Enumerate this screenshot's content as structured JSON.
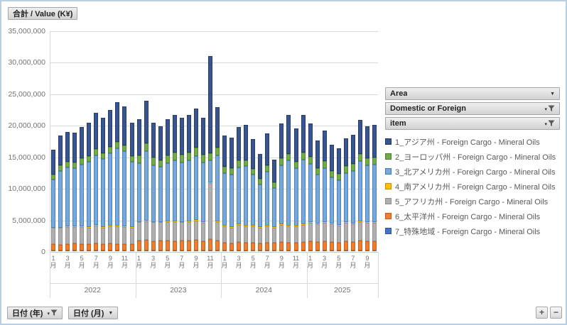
{
  "value_field_button": {
    "label": "合計 / Value (K¥)"
  },
  "legend_filter_buttons": [
    {
      "label": "Area",
      "icons": [
        "dropdown"
      ]
    },
    {
      "label": "Domestic or Foreign",
      "icons": [
        "dropdown",
        "filter"
      ]
    },
    {
      "label": "item",
      "icons": [
        "dropdown",
        "filter"
      ]
    }
  ],
  "axis_field_buttons": [
    {
      "label": "日付 (年)",
      "icons": [
        "dropdown",
        "filter"
      ]
    },
    {
      "label": "日付 (月)",
      "icons": [
        "dropdown"
      ]
    }
  ],
  "drill_buttons": {
    "expand": "+",
    "collapse": "−"
  },
  "colors": {
    "canvas_border": "#b9cfe4",
    "gridline": "#d9d9d9",
    "axis_text": "#737373",
    "legend_text": "#595959"
  },
  "chart_data": {
    "type": "bar",
    "stacked": true,
    "title": "合計 / Value (K¥)",
    "unit": "K¥",
    "value_scale": 1000000,
    "ylim": [
      0,
      35000000
    ],
    "grid": true,
    "legend_position": "right",
    "y_ticks": [
      "0",
      "5,000,000",
      "10,000,000",
      "15,000,000",
      "20,000,000",
      "25,000,000",
      "30,000,000",
      "35,000,000"
    ],
    "x_years": [
      {
        "label": "2022",
        "months": 12,
        "tick_positions": [
          0,
          2,
          4,
          6,
          8,
          10
        ],
        "tick_labels": [
          "1月",
          "3月",
          "5月",
          "7月",
          "9月",
          "11月"
        ]
      },
      {
        "label": "2023",
        "months": 12,
        "tick_positions": [
          0,
          2,
          4,
          6,
          8,
          10
        ],
        "tick_labels": [
          "1月",
          "3月",
          "5月",
          "7月",
          "9月",
          "11月"
        ]
      },
      {
        "label": "2024",
        "months": 12,
        "tick_positions": [
          0,
          2,
          4,
          6,
          8,
          10
        ],
        "tick_labels": [
          "1月",
          "3月",
          "5月",
          "7月",
          "9月",
          "11月"
        ]
      },
      {
        "label": "2025",
        "months": 10,
        "tick_positions": [
          0,
          2,
          4,
          6,
          8
        ],
        "tick_labels": [
          "1月",
          "3月",
          "5月",
          "7月",
          "9月"
        ]
      }
    ],
    "series": [
      {
        "name": "1_アジア州 - Foreign Cargo - Mineral Oils",
        "color": "#3a5490",
        "border": "#1f3864",
        "values": [
          3.95,
          4.65,
          4.75,
          4.75,
          5.0,
          5.35,
          5.7,
          5.55,
          5.9,
          6.3,
          6.15,
          5.35,
          5.7,
          6.75,
          5.55,
          5.35,
          5.7,
          5.95,
          5.8,
          5.95,
          6.2,
          5.85,
          15.4,
          6.4,
          4.9,
          4.85,
          5.3,
          5.55,
          4.7,
          3.95,
          5.05,
          3.6,
          5.55,
          6.15,
          5.35,
          6.0,
          5.25,
          4.35,
          4.85,
          4.15,
          4.0,
          4.4,
          4.7,
          5.35,
          5.1,
          5.15
        ]
      },
      {
        "name": "2_ヨーロッパ州 - Foreign Cargo - Mineral Oils",
        "color": "#70ad47",
        "border": "#507e32",
        "values": [
          0.8,
          0.9,
          0.9,
          0.9,
          1.0,
          0.9,
          1.0,
          0.9,
          1.0,
          1.0,
          0.9,
          0.9,
          1.2,
          1.3,
          1.2,
          1.1,
          1.2,
          1.2,
          1.2,
          1.2,
          1.3,
          1.2,
          1.1,
          1.2,
          1.0,
          1.0,
          1.1,
          1.0,
          1.0,
          0.9,
          1.0,
          0.9,
          1.1,
          1.0,
          1.0,
          1.1,
          1.1,
          1.0,
          1.1,
          1.0,
          1.0,
          1.1,
          1.1,
          1.2,
          1.1,
          1.1
        ]
      },
      {
        "name": "3_北アメリカ州 - Foreign Cargo - Mineral Oils",
        "color": "#78a7db",
        "border": "#3e78b5",
        "values": [
          7.6,
          9.0,
          9.3,
          9.2,
          9.75,
          10.3,
          11.05,
          10.8,
          11.45,
          12.25,
          11.9,
          10.3,
          9.35,
          11.0,
          9.0,
          8.7,
          9.25,
          9.7,
          9.45,
          9.7,
          10.15,
          9.5,
          3.5,
          10.45,
          8.35,
          8.3,
          9.05,
          9.4,
          8.05,
          6.7,
          8.6,
          6.15,
          9.4,
          10.4,
          9.1,
          10.25,
          9.3,
          7.8,
          8.6,
          7.4,
          7.15,
          7.85,
          8.35,
          9.5,
          9.05,
          9.2
        ]
      },
      {
        "name": "4_南アメリカ州 - Foreign Cargo - Mineral Oils",
        "color": "#ffc000",
        "border": "#bf8f00",
        "values": [
          0.1,
          0.1,
          0.1,
          0.1,
          0.1,
          0.1,
          0.1,
          0.1,
          0.1,
          0.1,
          0.1,
          0.1,
          0.1,
          0.1,
          0.1,
          0.1,
          0.1,
          0.1,
          0.1,
          0.1,
          0.1,
          0.1,
          0.1,
          0.1,
          0.1,
          0.1,
          0.1,
          0.1,
          0.1,
          0.1,
          0.1,
          0.1,
          0.1,
          0.1,
          0.1,
          0.1,
          0.1,
          0.1,
          0.1,
          0.1,
          0.1,
          0.1,
          0.1,
          0.1,
          0.1,
          0.1
        ]
      },
      {
        "name": "5_アフリカ州 - Foreign Cargo - Mineral Oils",
        "color": "#afafaf",
        "border": "#8c8c8c",
        "values": [
          2.5,
          2.6,
          2.7,
          2.6,
          2.7,
          2.6,
          2.8,
          2.6,
          2.7,
          2.8,
          2.7,
          2.6,
          2.9,
          3.0,
          3.0,
          2.9,
          3.0,
          3.1,
          2.9,
          3.0,
          3.1,
          2.9,
          9.0,
          3.0,
          2.6,
          2.5,
          2.7,
          2.6,
          2.6,
          2.5,
          2.6,
          2.4,
          2.7,
          2.6,
          2.6,
          2.7,
          2.9,
          2.8,
          2.9,
          2.8,
          2.7,
          2.9,
          2.8,
          3.0,
          2.9,
          2.9
        ]
      },
      {
        "name": "6_太平洋州 - Foreign Cargo - Mineral Oils",
        "color": "#ed7d31",
        "border": "#c55a11",
        "values": [
          1.0,
          0.9,
          1.0,
          1.1,
          1.0,
          1.0,
          1.1,
          1.0,
          1.1,
          1.0,
          1.0,
          1.0,
          1.5,
          1.6,
          1.4,
          1.5,
          1.5,
          1.4,
          1.5,
          1.5,
          1.6,
          1.4,
          1.7,
          1.5,
          1.2,
          1.1,
          1.3,
          1.2,
          1.2,
          1.1,
          1.2,
          1.2,
          1.3,
          1.2,
          1.2,
          1.3,
          1.4,
          1.3,
          1.4,
          1.3,
          1.2,
          1.4,
          1.3,
          1.5,
          1.4,
          1.4
        ]
      },
      {
        "name": "7_特殊地域 - Foreign Cargo - Mineral Oils",
        "color": "#4472c4",
        "border": "#2f5597",
        "values": [
          0.05,
          0.05,
          0.05,
          0.05,
          0.05,
          0.05,
          0.05,
          0.05,
          0.05,
          0.05,
          0.05,
          0.05,
          0.05,
          0.05,
          0.05,
          0.05,
          0.05,
          0.05,
          0.05,
          0.05,
          0.05,
          0.05,
          0.05,
          0.05,
          0.05,
          0.05,
          0.05,
          0.05,
          0.05,
          0.05,
          0.05,
          0.05,
          0.05,
          0.05,
          0.05,
          0.05,
          0.05,
          0.05,
          0.05,
          0.05,
          0.05,
          0.05,
          0.05,
          0.05,
          0.05,
          0.05
        ]
      }
    ],
    "stack_order_note": "plotted bottom-to-top as series 7,6,5,4,3,2,1"
  }
}
